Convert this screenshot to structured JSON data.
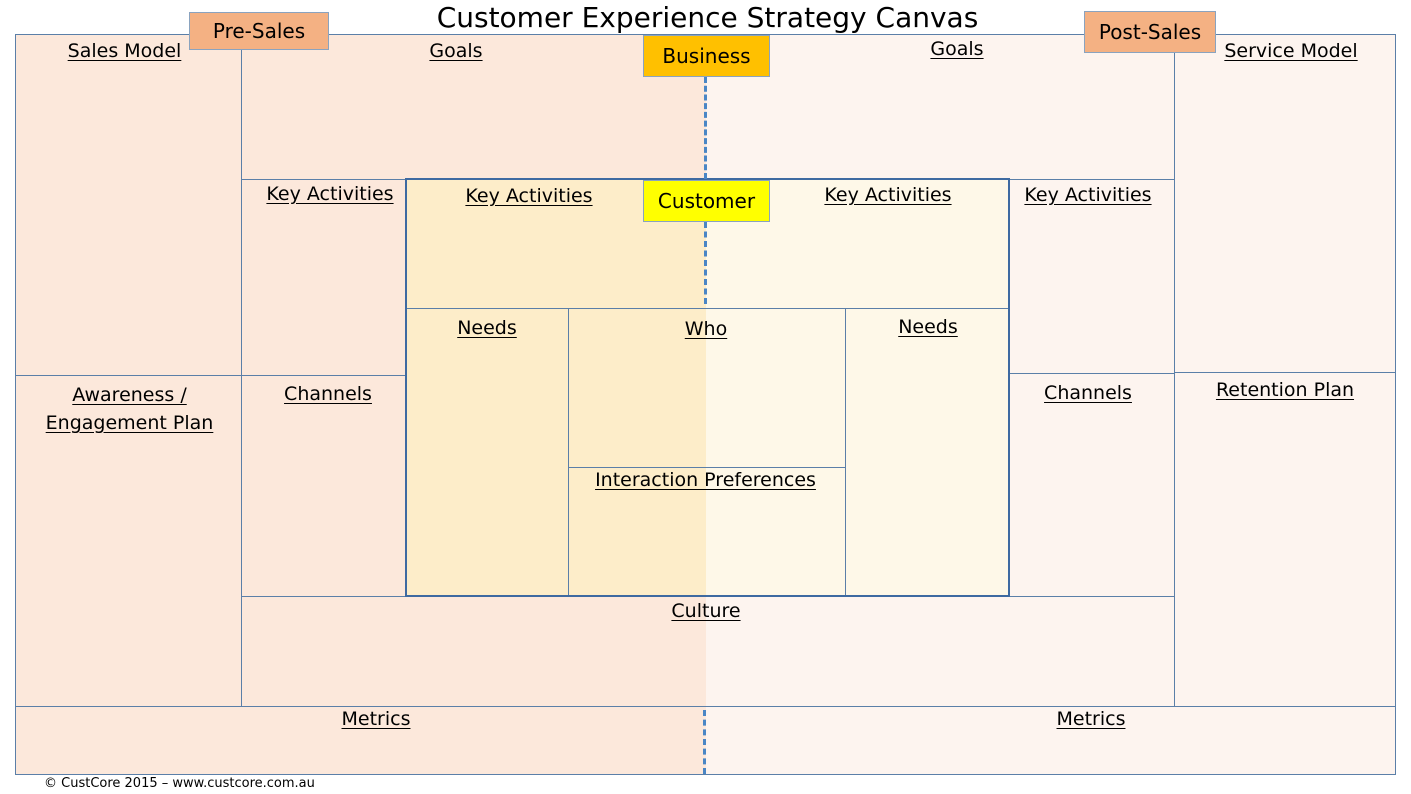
{
  "title": "Customer Experience Strategy Canvas",
  "tags": {
    "pre_sales": "Pre-Sales",
    "post_sales": "Post-Sales",
    "business": "Business",
    "customer": "Customer"
  },
  "sections": {
    "sales_model": "Sales Model",
    "goals_left": "Goals",
    "goals_right": "Goals",
    "service_model": "Service Model",
    "key_activities_outer_left": "Key Activities",
    "key_activities_inner_left": "Key Activities",
    "key_activities_inner_right": "Key Activities",
    "key_activities_outer_right": "Key Activities",
    "needs_left": "Needs",
    "who": "Who",
    "needs_right": "Needs",
    "interaction_preferences": "Interaction Preferences",
    "awareness_line1": "Awareness /",
    "awareness_line2": "Engagement Plan",
    "channels_left": "Channels",
    "channels_right": "Channels",
    "retention_plan": "Retention Plan",
    "culture": "Culture",
    "metrics_left": "Metrics",
    "metrics_right": "Metrics"
  },
  "footer": "© CustCore 2015 – www.custcore.com.au",
  "colors": {
    "pre_sales_bg": "#fce8db",
    "post_sales_bg": "#fdf4ef",
    "customer_left_bg": "#fdedc9",
    "customer_right_bg": "#fef8e8",
    "tag_sales": "#f4b183",
    "tag_business": "#ffc000",
    "tag_customer": "#ffff00",
    "border": "#5b7fa8",
    "divider": "#4a86c5"
  }
}
